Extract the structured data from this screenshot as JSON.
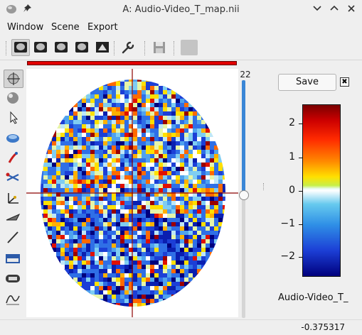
{
  "window": {
    "title": "A: Audio-Video_T_map.nii",
    "icons": [
      "app-logo-icon",
      "pin-icon",
      "chevron-down-icon",
      "chevron-up-icon",
      "close-icon"
    ]
  },
  "menu": {
    "items": [
      "Window",
      "Scene",
      "Export"
    ]
  },
  "toolbar": {
    "tools": [
      "axial-view-icon",
      "coronal-view-icon",
      "sagittal-view-icon",
      "multiplanar-view-icon",
      "render-view-icon"
    ],
    "settings_icon": "wrench-icon",
    "save_icon": "floppy-disk-icon"
  },
  "left_tools": [
    "rotate-icon",
    "sphere-icon",
    "pointer-icon",
    "hand-icon",
    "pen-icon",
    "scissors-icon",
    "axes-icon",
    "plane-icon",
    "line-icon",
    "level-icon",
    "distance-icon",
    "graph-icon"
  ],
  "viewer": {
    "slice_number": "22",
    "crosshair_color": "#8b0000"
  },
  "colorbar": {
    "save_label": "Save",
    "close_label": "✖",
    "labels": [
      "2",
      "1",
      "0",
      "−1",
      "−2"
    ],
    "name": "Audio-Video_T_",
    "colors": {
      "high": "#cc0000",
      "mid": "#ffffff",
      "low": "#00007d"
    }
  },
  "status": {
    "value": "-0.375317"
  }
}
